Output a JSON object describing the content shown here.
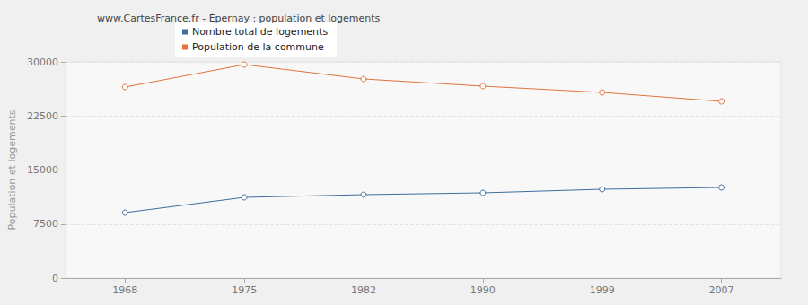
{
  "chart_data": {
    "type": "line",
    "title": "www.CartesFrance.fr - Épernay : population et logements",
    "y_label": "Population et logements",
    "categories": [
      "1968",
      "1975",
      "1982",
      "1990",
      "1999",
      "2007"
    ],
    "series": [
      {
        "name": "Nombre total de logements",
        "color": "#3f6e9e",
        "values": [
          9087,
          11203,
          11577,
          11826,
          12323,
          12572
        ]
      },
      {
        "name": "Population de la commune",
        "color": "#e0733f",
        "values": [
          26515,
          29627,
          27635,
          26639,
          25768,
          24523
        ]
      }
    ],
    "ylim": [
      0,
      30000
    ],
    "yticks": [
      0,
      7500,
      15000,
      22500,
      30000
    ],
    "grid": true,
    "legend": "top",
    "marker": "circle",
    "line_style": "solid"
  }
}
